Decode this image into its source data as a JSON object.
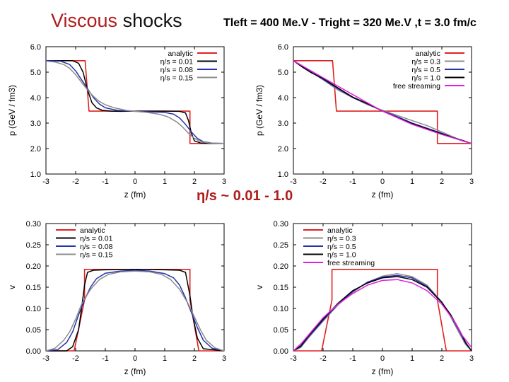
{
  "header": {
    "title_word1": "Viscous",
    "title_word2": "shocks",
    "subtitle": "Tleft = 400 Me.V - Tright = 320 Me.V ,t = 3.0 fm/c",
    "center_note": "η/s ~ 0.01 - 1.0"
  },
  "colors": {
    "analytic": "#e02020",
    "eta_001": "#000000",
    "eta_008": "#2633a8",
    "eta_015": "#8c8c8c",
    "eta_03": "#8c8c8c",
    "eta_05": "#2633a8",
    "eta_10": "#000000",
    "free_streaming": "#e020e0"
  },
  "chart_data": [
    {
      "type": "line",
      "id": "pressure-viscous-low",
      "xlabel": "z (fm)",
      "ylabel": "p (GeV / fm3)",
      "xlim": [
        -3,
        3
      ],
      "ylim": [
        1.0,
        6.0
      ],
      "xticks": [
        "-3",
        "-2",
        "-1",
        "0",
        "1",
        "2",
        "3"
      ],
      "yticks": [
        "1.0",
        "2.0",
        "3.0",
        "4.0",
        "5.0",
        "6.0"
      ],
      "legend_position": "top-right",
      "series": [
        {
          "name": "analytic",
          "color_key": "analytic",
          "x": [
            -3.0,
            -1.68,
            -1.68,
            -1.55,
            -1.55,
            1.85,
            1.85,
            3.0
          ],
          "y": [
            5.45,
            5.45,
            5.45,
            3.47,
            3.47,
            3.47,
            2.2,
            2.2
          ]
        },
        {
          "name": "η/s = 0.01",
          "color_key": "eta_001",
          "x": [
            -3.0,
            -2.1,
            -1.9,
            -1.75,
            -1.6,
            -1.45,
            -1.3,
            -1.1,
            -0.8,
            -0.5,
            0.0,
            0.5,
            1.0,
            1.5,
            1.7,
            1.8,
            1.9,
            2.0,
            2.2,
            2.5,
            3.0
          ],
          "y": [
            5.45,
            5.45,
            5.35,
            5.0,
            4.3,
            3.8,
            3.6,
            3.5,
            3.47,
            3.46,
            3.47,
            3.47,
            3.47,
            3.46,
            3.4,
            3.1,
            2.6,
            2.3,
            2.22,
            2.2,
            2.2
          ]
        },
        {
          "name": "η/s = 0.08",
          "color_key": "eta_008",
          "x": [
            -3.0,
            -2.5,
            -2.2,
            -2.0,
            -1.8,
            -1.6,
            -1.4,
            -1.2,
            -1.0,
            -0.6,
            0.0,
            0.6,
            1.0,
            1.3,
            1.5,
            1.7,
            1.9,
            2.1,
            2.3,
            2.6,
            3.0
          ],
          "y": [
            5.45,
            5.43,
            5.3,
            5.05,
            4.7,
            4.35,
            4.0,
            3.75,
            3.6,
            3.5,
            3.46,
            3.44,
            3.42,
            3.35,
            3.2,
            2.95,
            2.65,
            2.4,
            2.27,
            2.21,
            2.2
          ]
        },
        {
          "name": "η/s = 0.15",
          "color_key": "eta_015",
          "x": [
            -3.0,
            -2.7,
            -2.4,
            -2.2,
            -2.0,
            -1.8,
            -1.6,
            -1.4,
            -1.2,
            -1.0,
            -0.7,
            -0.3,
            0.0,
            0.4,
            0.8,
            1.1,
            1.4,
            1.6,
            1.8,
            2.0,
            2.2,
            2.5,
            3.0
          ],
          "y": [
            5.43,
            5.4,
            5.3,
            5.15,
            4.9,
            4.6,
            4.3,
            4.05,
            3.85,
            3.72,
            3.6,
            3.5,
            3.46,
            3.42,
            3.35,
            3.25,
            3.05,
            2.85,
            2.6,
            2.4,
            2.28,
            2.22,
            2.2
          ]
        }
      ]
    },
    {
      "type": "line",
      "id": "pressure-viscous-high",
      "xlabel": "z (fm)",
      "ylabel": "p (GeV / fm3)",
      "xlim": [
        -3,
        3
      ],
      "ylim": [
        1.0,
        6.0
      ],
      "xticks": [
        "-3",
        "-2",
        "-1",
        "0",
        "1",
        "2",
        "3"
      ],
      "yticks": [
        "1.0",
        "2.0",
        "3.0",
        "4.0",
        "5.0",
        "6.0"
      ],
      "legend_position": "top-right",
      "series": [
        {
          "name": "analytic",
          "color_key": "analytic",
          "x": [
            -3.0,
            -1.68,
            -1.68,
            -1.55,
            -1.55,
            1.85,
            1.85,
            3.0
          ],
          "y": [
            5.45,
            5.45,
            5.45,
            3.47,
            3.47,
            3.47,
            2.2,
            2.2
          ]
        },
        {
          "name": "η/s = 0.3",
          "color_key": "eta_03",
          "x": [
            -3.0,
            -2.7,
            -2.4,
            -2.0,
            -1.5,
            -1.0,
            -0.5,
            0.0,
            0.5,
            1.0,
            1.5,
            2.0,
            2.4,
            2.7,
            3.0
          ],
          "y": [
            5.45,
            5.25,
            5.0,
            4.7,
            4.3,
            4.0,
            3.72,
            3.5,
            3.3,
            3.1,
            2.9,
            2.65,
            2.45,
            2.3,
            2.2
          ]
        },
        {
          "name": "η/s = 0.5",
          "color_key": "eta_05",
          "x": [
            -3.0,
            -2.7,
            -2.4,
            -2.0,
            -1.5,
            -1.0,
            -0.5,
            0.0,
            0.5,
            1.0,
            1.5,
            2.0,
            2.4,
            2.7,
            3.0
          ],
          "y": [
            5.45,
            5.22,
            5.0,
            4.72,
            4.35,
            4.0,
            3.75,
            3.48,
            3.25,
            3.0,
            2.8,
            2.6,
            2.42,
            2.3,
            2.2
          ]
        },
        {
          "name": "η/s = 1.0",
          "color_key": "eta_10",
          "x": [
            -3.0,
            -2.7,
            -2.4,
            -2.0,
            -1.5,
            -1.0,
            -0.5,
            0.0,
            0.5,
            1.0,
            1.5,
            2.0,
            2.4,
            2.7,
            3.0
          ],
          "y": [
            5.45,
            5.2,
            4.98,
            4.75,
            4.38,
            4.02,
            3.76,
            3.47,
            3.22,
            2.98,
            2.78,
            2.58,
            2.42,
            2.32,
            2.2
          ]
        },
        {
          "name": "free streaming",
          "color_key": "free_streaming",
          "x": [
            -3.0,
            -2.0,
            -1.0,
            0.0,
            1.0,
            2.0,
            3.0
          ],
          "y": [
            5.45,
            4.78,
            4.12,
            3.47,
            2.95,
            2.55,
            2.2
          ]
        }
      ]
    },
    {
      "type": "line",
      "id": "velocity-viscous-low",
      "xlabel": "z (fm)",
      "ylabel": "v",
      "xlim": [
        -3,
        3
      ],
      "ylim": [
        0.0,
        0.3
      ],
      "xticks": [
        "-3",
        "-2",
        "-1",
        "0",
        "1",
        "2",
        "3"
      ],
      "yticks": [
        "0.00",
        "0.05",
        "0.10",
        "0.15",
        "0.20",
        "0.25",
        "0.30"
      ],
      "legend_position": "top-left",
      "series": [
        {
          "name": "analytic",
          "color_key": "analytic",
          "x": [
            -3.0,
            -2.05,
            -1.7,
            -1.7,
            1.85,
            1.85,
            2.15,
            3.0
          ],
          "y": [
            0.0,
            0.0,
            0.12,
            0.192,
            0.192,
            0.12,
            0.0,
            0.0
          ]
        },
        {
          "name": "η/s = 0.01",
          "color_key": "eta_001",
          "x": [
            -3.0,
            -2.3,
            -2.1,
            -1.9,
            -1.8,
            -1.7,
            -1.6,
            -1.4,
            -1.0,
            0.0,
            1.0,
            1.5,
            1.7,
            1.85,
            1.95,
            2.1,
            2.3,
            3.0
          ],
          "y": [
            0.0,
            0.0,
            0.01,
            0.05,
            0.1,
            0.155,
            0.185,
            0.19,
            0.191,
            0.192,
            0.191,
            0.19,
            0.185,
            0.13,
            0.08,
            0.03,
            0.005,
            0.0
          ]
        },
        {
          "name": "η/s = 0.08",
          "color_key": "eta_008",
          "x": [
            -3.0,
            -2.6,
            -2.3,
            -2.1,
            -1.9,
            -1.7,
            -1.5,
            -1.3,
            -1.0,
            -0.5,
            0.0,
            0.5,
            1.0,
            1.3,
            1.5,
            1.7,
            1.9,
            2.1,
            2.3,
            2.6,
            3.0
          ],
          "y": [
            0.0,
            0.003,
            0.02,
            0.045,
            0.085,
            0.12,
            0.15,
            0.17,
            0.183,
            0.188,
            0.19,
            0.188,
            0.182,
            0.172,
            0.155,
            0.125,
            0.09,
            0.055,
            0.025,
            0.006,
            0.0
          ]
        },
        {
          "name": "η/s = 0.15",
          "color_key": "eta_015",
          "x": [
            -3.0,
            -2.7,
            -2.4,
            -2.2,
            -2.0,
            -1.8,
            -1.5,
            -1.2,
            -0.9,
            -0.5,
            0.0,
            0.5,
            0.9,
            1.2,
            1.5,
            1.8,
            2.0,
            2.2,
            2.4,
            2.7,
            3.0
          ],
          "y": [
            0.0,
            0.006,
            0.025,
            0.045,
            0.075,
            0.11,
            0.145,
            0.168,
            0.18,
            0.186,
            0.188,
            0.186,
            0.18,
            0.168,
            0.145,
            0.11,
            0.08,
            0.05,
            0.025,
            0.007,
            0.0
          ]
        }
      ]
    },
    {
      "type": "line",
      "id": "velocity-viscous-high",
      "xlabel": "z (fm)",
      "ylabel": "v",
      "xlim": [
        -3,
        3
      ],
      "ylim": [
        0.0,
        0.3
      ],
      "xticks": [
        "-3",
        "-2",
        "-1",
        "0",
        "1",
        "2",
        "3"
      ],
      "yticks": [
        "0.00",
        "0.05",
        "0.10",
        "0.15",
        "0.20",
        "0.25",
        "0.30"
      ],
      "legend_position": "top-left",
      "series": [
        {
          "name": "analytic",
          "color_key": "analytic",
          "x": [
            -3.0,
            -2.05,
            -1.7,
            -1.7,
            1.85,
            1.85,
            2.15,
            3.0
          ],
          "y": [
            0.0,
            0.0,
            0.12,
            0.192,
            0.192,
            0.12,
            0.0,
            0.0
          ]
        },
        {
          "name": "η/s = 0.3",
          "color_key": "eta_03",
          "x": [
            -3.0,
            -2.75,
            -2.5,
            -2.0,
            -1.5,
            -1.0,
            -0.5,
            0.0,
            0.5,
            1.0,
            1.5,
            2.0,
            2.3,
            2.6,
            2.8,
            3.0
          ],
          "y": [
            0.0,
            0.008,
            0.03,
            0.07,
            0.108,
            0.138,
            0.162,
            0.176,
            0.182,
            0.175,
            0.155,
            0.115,
            0.08,
            0.04,
            0.015,
            0.0
          ]
        },
        {
          "name": "η/s = 0.5",
          "color_key": "eta_05",
          "x": [
            -3.0,
            -2.75,
            -2.5,
            -2.0,
            -1.5,
            -1.0,
            -0.5,
            0.0,
            0.5,
            1.0,
            1.5,
            2.0,
            2.3,
            2.6,
            2.8,
            3.0
          ],
          "y": [
            0.0,
            0.01,
            0.032,
            0.072,
            0.11,
            0.14,
            0.162,
            0.174,
            0.178,
            0.172,
            0.152,
            0.115,
            0.082,
            0.045,
            0.018,
            0.0
          ]
        },
        {
          "name": "η/s = 1.0",
          "color_key": "eta_10",
          "x": [
            -3.0,
            -2.75,
            -2.5,
            -2.0,
            -1.5,
            -1.0,
            -0.5,
            0.0,
            0.5,
            1.0,
            1.5,
            2.0,
            2.3,
            2.6,
            2.8,
            3.0
          ],
          "y": [
            0.0,
            0.012,
            0.035,
            0.075,
            0.112,
            0.142,
            0.16,
            0.172,
            0.175,
            0.168,
            0.15,
            0.114,
            0.085,
            0.048,
            0.02,
            0.0
          ]
        },
        {
          "name": "free streaming",
          "color_key": "free_streaming",
          "x": [
            -3.0,
            -2.7,
            -2.4,
            -2.0,
            -1.5,
            -1.0,
            -0.5,
            0.0,
            0.5,
            1.0,
            1.5,
            2.0,
            2.4,
            2.7,
            3.0
          ],
          "y": [
            0.0,
            0.02,
            0.045,
            0.078,
            0.11,
            0.135,
            0.155,
            0.166,
            0.168,
            0.16,
            0.142,
            0.11,
            0.072,
            0.035,
            0.008
          ]
        }
      ]
    }
  ]
}
